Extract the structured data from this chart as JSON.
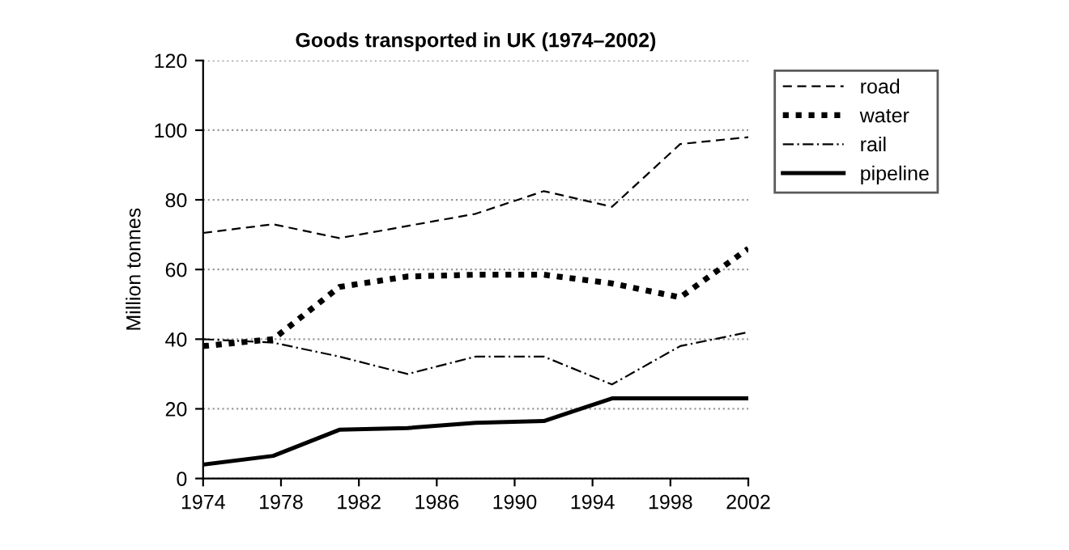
{
  "chart_data": {
    "type": "line",
    "title": "Goods transported in UK (1974–2002)",
    "ylabel": "Million tonnes",
    "x": [
      1974,
      1977.6,
      1981,
      1984.5,
      1988,
      1991.5,
      1995,
      1998.5,
      2002
    ],
    "series": [
      {
        "name": "road",
        "color": "#000000",
        "line_style": "dashed",
        "values": [
          70.5,
          73,
          69,
          72.5,
          76,
          82.5,
          78,
          96,
          98
        ]
      },
      {
        "name": "water",
        "color": "#000000",
        "line_style": "dotted",
        "values": [
          38,
          40,
          55,
          58,
          58.5,
          58.5,
          56,
          52,
          66
        ]
      },
      {
        "name": "rail",
        "color": "#000000",
        "line_style": "dashdot",
        "values": [
          40,
          39,
          35,
          30,
          35,
          35,
          27,
          38,
          42
        ]
      },
      {
        "name": "pipeline",
        "color": "#000000",
        "line_style": "solid",
        "values": [
          4,
          6.5,
          14,
          14.5,
          16,
          16.5,
          23,
          23,
          23
        ]
      }
    ],
    "xlim": [
      1974,
      2002
    ],
    "xticks": [
      1974,
      1978,
      1982,
      1986,
      1990,
      1994,
      1998,
      2002
    ],
    "ylim": [
      0,
      120
    ],
    "yticks": [
      0,
      20,
      40,
      60,
      80,
      100,
      120
    ],
    "grid": "y",
    "legend": "right",
    "marker": "none"
  }
}
